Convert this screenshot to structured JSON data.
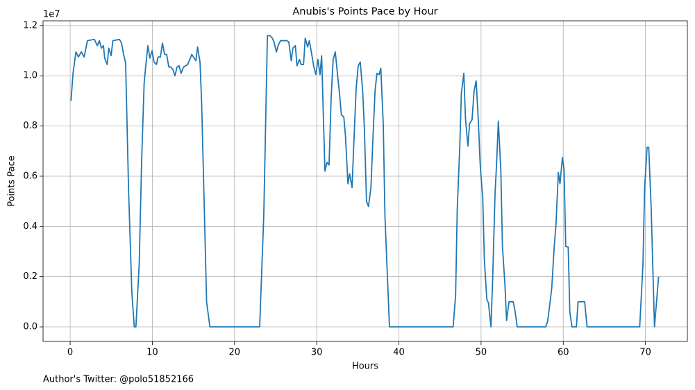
{
  "chart_data": {
    "type": "line",
    "title": "Anubis's Points Pace by Hour",
    "x_label": "Hours",
    "y_label": "Points Pace",
    "y_offset_label": "1e7",
    "footnote": "Author's Twitter: @polo51852166",
    "grid": true,
    "xlim": [
      -3.3,
      75.1
    ],
    "ylim": [
      -0.058,
      1.219
    ],
    "xticks": [
      0,
      10,
      20,
      30,
      40,
      50,
      60,
      70
    ],
    "yticks": [
      {
        "value": 0,
        "label": "0.0"
      },
      {
        "value": 0.2,
        "label": "0.2"
      },
      {
        "value": 0.4,
        "label": "0.4"
      },
      {
        "value": 0.6,
        "label": "0.6"
      },
      {
        "value": 0.8,
        "label": "0.8"
      },
      {
        "value": 1.0,
        "label": "1.0"
      },
      {
        "value": 1.2,
        "label": "1.2"
      }
    ],
    "x": [
      0.1,
      0.35,
      0.7,
      1.0,
      1.35,
      1.7,
      2.1,
      2.95,
      3.3,
      3.55,
      3.8,
      4.05,
      4.2,
      4.5,
      4.7,
      4.98,
      5.2,
      6.0,
      6.25,
      6.5,
      6.75,
      7.1,
      7.5,
      7.8,
      8.0,
      8.4,
      8.7,
      9.0,
      9.2,
      9.45,
      9.7,
      9.97,
      10.2,
      10.5,
      10.7,
      10.98,
      11.23,
      11.5,
      11.74,
      12.0,
      12.25,
      12.5,
      12.75,
      13.0,
      13.26,
      13.5,
      13.8,
      14.3,
      14.8,
      15.3,
      15.5,
      15.8,
      16.0,
      16.3,
      16.6,
      17.0,
      23.06,
      23.56,
      24.0,
      24.3,
      24.6,
      24.8,
      25.1,
      25.3,
      25.6,
      26.35,
      26.6,
      26.9,
      27.1,
      27.4,
      27.6,
      27.9,
      28.1,
      28.4,
      28.6,
      28.9,
      29.1,
      29.4,
      29.65,
      29.9,
      30.15,
      30.4,
      30.6,
      31.0,
      31.25,
      31.5,
      31.76,
      32.0,
      32.26,
      32.5,
      32.77,
      33.0,
      33.3,
      33.5,
      33.8,
      34.0,
      34.3,
      34.5,
      34.8,
      35.05,
      35.3,
      35.6,
      35.8,
      36.06,
      36.3,
      36.6,
      36.8,
      37.1,
      37.33,
      37.6,
      37.8,
      38.1,
      38.3,
      38.85,
      46.6,
      46.9,
      47.1,
      47.4,
      47.6,
      47.9,
      48.1,
      48.4,
      48.6,
      48.9,
      49.15,
      49.4,
      49.66,
      49.9,
      50.2,
      50.4,
      50.7,
      50.9,
      51.2,
      51.4,
      51.7,
      51.9,
      52.1,
      52.4,
      52.6,
      52.9,
      53.1,
      53.4,
      53.9,
      54.1,
      54.4,
      57.86,
      58.1,
      58.4,
      58.6,
      58.9,
      59.1,
      59.4,
      59.6,
      59.9,
      60.1,
      60.3,
      60.6,
      60.8,
      61.06,
      61.6,
      61.8,
      62.6,
      62.9,
      69.3,
      69.7,
      69.9,
      70.2,
      70.4,
      70.7,
      71.1,
      71.6
    ],
    "series": [
      {
        "color": "#1f77b4",
        "values": [
          0.9,
          1.01,
          1.095,
          1.075,
          1.095,
          1.075,
          1.14,
          1.145,
          1.12,
          1.14,
          1.11,
          1.12,
          1.07,
          1.045,
          1.11,
          1.08,
          1.14,
          1.145,
          1.13,
          1.085,
          1.05,
          0.555,
          0.14,
          0.0,
          0.0,
          0.25,
          0.665,
          0.97,
          1.04,
          1.12,
          1.07,
          1.1,
          1.055,
          1.045,
          1.075,
          1.075,
          1.13,
          1.085,
          1.085,
          1.035,
          1.035,
          1.025,
          1.0,
          1.035,
          1.04,
          1.01,
          1.035,
          1.045,
          1.085,
          1.06,
          1.115,
          1.055,
          0.89,
          0.5,
          0.1,
          0.0,
          0.0,
          0.445,
          1.16,
          1.16,
          1.15,
          1.135,
          1.095,
          1.12,
          1.14,
          1.14,
          1.135,
          1.06,
          1.11,
          1.12,
          1.04,
          1.065,
          1.045,
          1.045,
          1.15,
          1.115,
          1.14,
          1.085,
          1.035,
          1.005,
          1.065,
          1.005,
          1.08,
          0.62,
          0.655,
          0.645,
          0.915,
          1.065,
          1.095,
          1.015,
          0.93,
          0.845,
          0.835,
          0.76,
          0.57,
          0.61,
          0.555,
          0.72,
          0.95,
          1.04,
          1.055,
          0.935,
          0.79,
          0.5,
          0.48,
          0.555,
          0.72,
          0.94,
          1.01,
          1.005,
          1.03,
          0.805,
          0.445,
          0.0,
          0.0,
          0.125,
          0.47,
          0.71,
          0.93,
          1.01,
          0.83,
          0.72,
          0.81,
          0.825,
          0.94,
          0.98,
          0.825,
          0.64,
          0.515,
          0.265,
          0.11,
          0.095,
          0.0,
          0.18,
          0.53,
          0.66,
          0.82,
          0.625,
          0.32,
          0.17,
          0.025,
          0.1,
          0.1,
          0.07,
          0.0,
          0.0,
          0.022,
          0.1,
          0.155,
          0.32,
          0.4,
          0.615,
          0.57,
          0.675,
          0.625,
          0.32,
          0.318,
          0.058,
          0.0,
          0.0,
          0.1,
          0.1,
          0.0,
          0.0,
          0.25,
          0.555,
          0.715,
          0.715,
          0.47,
          0.0,
          0.2
        ]
      }
    ]
  }
}
